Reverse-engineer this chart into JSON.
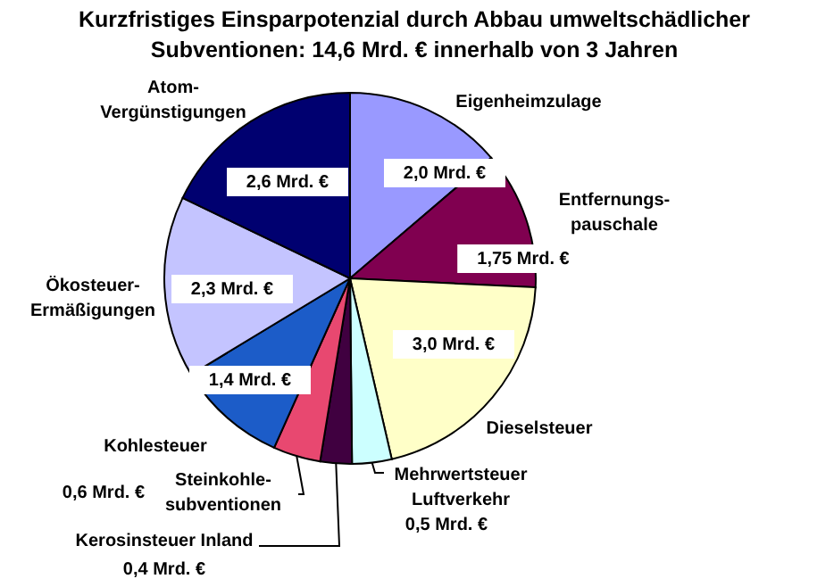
{
  "chart_data": {
    "type": "pie",
    "title": "Kurzfristiges Einsparpotenzial durch Abbau umweltschädlicher\nSubventionen: 14,6 Mrd. € innerhalb von 3 Jahren",
    "categories": [
      "Eigenheimzulage",
      "Entfernungs-\npauschale",
      "Dieselsteuer",
      "Mehrwertsteuer\nLuftverkehr",
      "Kerosinsteuer Inland",
      "Steinkohle-\nsubventionen",
      "Kohlesteuer",
      "Ökosteuer-\nErmäßigungen",
      "Atom-\nVergünstigungen"
    ],
    "values": [
      2.0,
      1.75,
      3.0,
      0.5,
      0.4,
      0.6,
      1.4,
      2.3,
      2.6
    ],
    "value_labels": [
      "2,0 Mrd. €",
      "1,75 Mrd. €",
      "3,0 Mrd. €",
      "0,5 Mrd. €",
      "0,4 Mrd. €",
      "0,6 Mrd. €",
      "1,4 Mrd. €",
      "2,3 Mrd. €",
      "2,6 Mrd. €"
    ],
    "colors": [
      "#9999ff",
      "#800050",
      "#ffffc8",
      "#ccffff",
      "#400040",
      "#e84870",
      "#1c5cc8",
      "#c4c4ff",
      "#000070"
    ]
  }
}
